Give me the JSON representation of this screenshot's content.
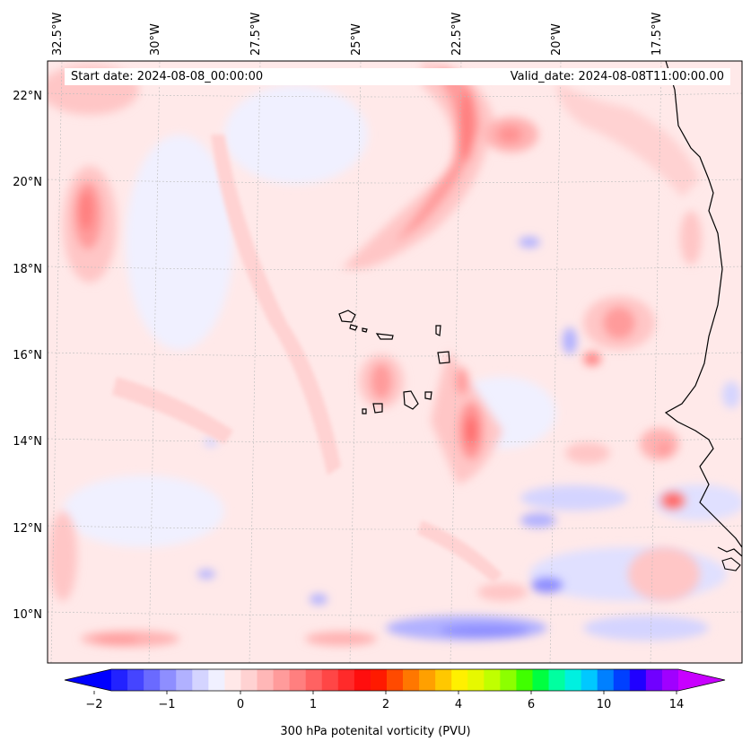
{
  "start_date_text": "Start date: 2024-08-08_00:00:00",
  "valid_date_text": "Valid_date: 2024-08-08T11:00:00.00",
  "map": {
    "lon_labels": [
      "32.5°W",
      "30°W",
      "27.5°W",
      "25°W",
      "22.5°W",
      "20°W",
      "17.5°W"
    ],
    "lat_labels": [
      "22°N",
      "20°N",
      "18°N",
      "16°N",
      "14°N",
      "12°N",
      "10°N"
    ],
    "gridlines": true,
    "background_color": "#ffe9e9"
  },
  "colorbar": {
    "label": "300 hPa potenital vorticity (PVU)",
    "tick_labels": [
      "−2",
      "−1",
      "0",
      "1",
      "2",
      "4",
      "6",
      "10",
      "14"
    ],
    "colors": [
      "#0000ff",
      "#2222ff",
      "#4545ff",
      "#6a6aff",
      "#8e8eff",
      "#b1b1ff",
      "#d4d4ff",
      "#f0f0ff",
      "#ffe8e8",
      "#ffd2d2",
      "#ffb7b7",
      "#ff9b9b",
      "#ff7f7f",
      "#ff6262",
      "#ff4646",
      "#ff2a2a",
      "#ff0e0e",
      "#ff1a00",
      "#ff4a00",
      "#ff7700",
      "#ffa000",
      "#ffc800",
      "#fff000",
      "#e6f800",
      "#c0ff00",
      "#8cff00",
      "#40ff00",
      "#00ff40",
      "#00ffa0",
      "#00f0e0",
      "#00c8ff",
      "#0080ff",
      "#0040ff",
      "#2000ff",
      "#7000ff",
      "#a000ff",
      "#c800ff"
    ]
  }
}
